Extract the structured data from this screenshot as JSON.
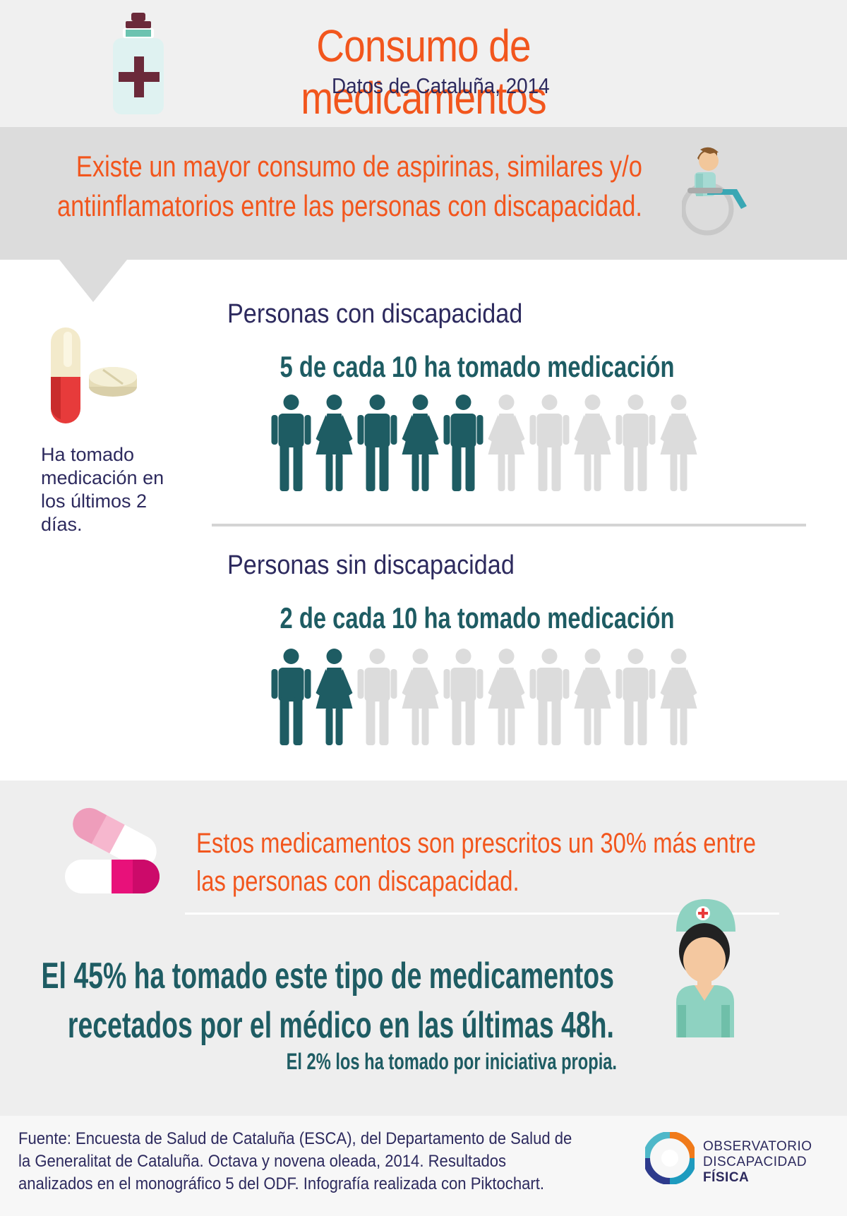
{
  "header": {
    "title": "Consumo de medicamentos",
    "subtitle": "Datos de Cataluña, 2014"
  },
  "intro": {
    "line1": "Existe un mayor consumo de aspirinas, similares y/o",
    "line2": "antiinflamatorios entre las personas con discapacidad."
  },
  "side_note": "Ha tomado medicación en los últimos 2 días.",
  "groups": [
    {
      "label": "Personas con discapacidad",
      "stat": "5 de cada 10 ha tomado medicación",
      "filled": 5,
      "total": 10
    },
    {
      "label": "Personas sin discapacidad",
      "stat": "2 de cada 10 ha tomado medicación",
      "filled": 2,
      "total": 10
    }
  ],
  "prescribed": {
    "line1": "Estos medicamentos son prescritos un 30% más entre",
    "line2": "las personas con discapacidad."
  },
  "big_stat": {
    "line1": "El 45% ha tomado este tipo de medicamentos",
    "line2": "recetados por el médico en las últimas 48h."
  },
  "small_stat": "El 2% los ha tomado por iniciativa propia.",
  "footer": {
    "line1": "Fuente: Encuesta de Salud de Cataluña (ESCA), del Departamento de Salud de",
    "line2": "la Generalitat de Cataluña. Octava y novena oleada, 2014. Resultados",
    "line3": "analizados en el monográfico 5 del ODF. Infografía realizada con Piktochart."
  },
  "logo": {
    "line1": "OBSERVATORIO",
    "line2": "DISCAPACIDAD",
    "line3": "FÍSICA"
  },
  "colors": {
    "orange": "#f2561d",
    "navy": "#2d2a5e",
    "teal_dark": "#1e5c63",
    "person_filled": "#1e5c63",
    "person_empty": "#dcdcdc"
  },
  "icons": [
    "medicine-bottle-icon",
    "wheelchair-person-icon",
    "pills-icon",
    "capsule-icon",
    "nurse-icon",
    "observatorio-logo-icon"
  ]
}
